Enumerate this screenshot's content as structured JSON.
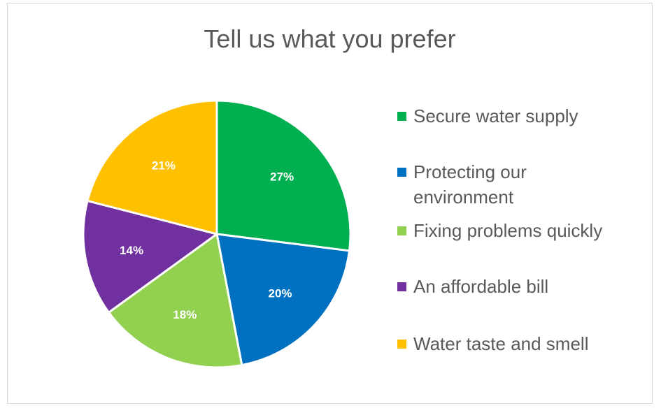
{
  "chart_data": {
    "type": "pie",
    "title": "Tell us what you prefer",
    "legend_position": "right",
    "slices": [
      {
        "label": "Secure water supply",
        "value": 27,
        "display": "27%",
        "color": "#00b050"
      },
      {
        "label": "Protecting our environment",
        "value": 20,
        "display": "20%",
        "color": "#0070c0"
      },
      {
        "label": "Fixing problems quickly",
        "value": 18,
        "display": "18%",
        "color": "#92d050"
      },
      {
        "label": "An affordable bill",
        "value": 14,
        "display": "14%",
        "color": "#7030a0"
      },
      {
        "label": "Water taste and smell",
        "value": 21,
        "display": "21%",
        "color": "#ffc000"
      }
    ]
  }
}
